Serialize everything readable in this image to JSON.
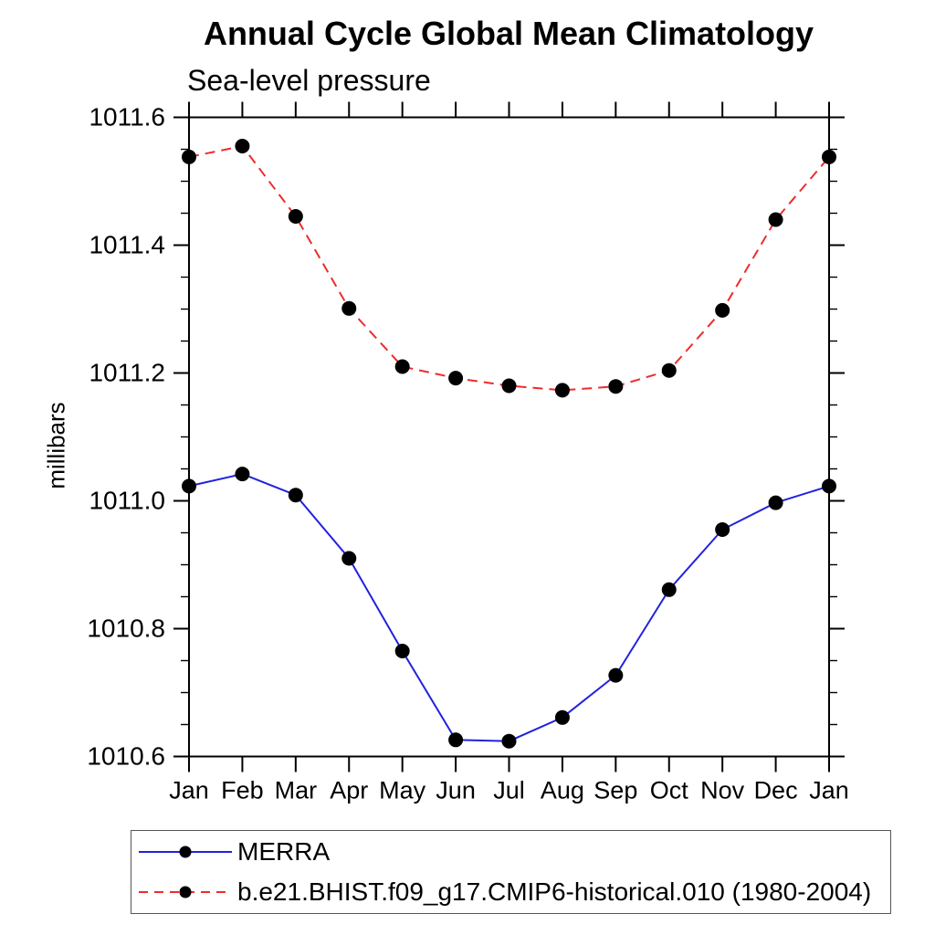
{
  "chart_data": {
    "type": "line",
    "title": "Annual Cycle Global Mean Climatology",
    "subtitle": "Sea-level pressure",
    "ylabel": "millibars",
    "xlabel": "",
    "categories": [
      "Jan",
      "Feb",
      "Mar",
      "Apr",
      "May",
      "Jun",
      "Jul",
      "Aug",
      "Sep",
      "Oct",
      "Nov",
      "Dec",
      "Jan"
    ],
    "ylim": [
      1010.6,
      1011.6
    ],
    "ytick_major_interval": 0.2,
    "ytick_minor_interval": 0.05,
    "ytick_labels": [
      "1010.6",
      "1010.8",
      "1011.0",
      "1011.2",
      "1011.4",
      "1011.6"
    ],
    "grid": false,
    "legend_position": "bottom",
    "axis_color": "#000000",
    "marker_shape": "filled-circle",
    "series": [
      {
        "name": "MERRA",
        "color": "#2222dd",
        "line_style": "solid",
        "marker_color": "#000000",
        "values": [
          1011.023,
          1011.042,
          1011.009,
          1010.91,
          1010.765,
          1010.626,
          1010.624,
          1010.661,
          1010.727,
          1010.861,
          1010.955,
          1010.997,
          1011.023
        ]
      },
      {
        "name": "b.e21.BHIST.f09_g17.CMIP6-historical.010 (1980-2004)",
        "color": "#ee2c2c",
        "line_style": "dashed",
        "marker_color": "#000000",
        "values": [
          1011.538,
          1011.555,
          1011.445,
          1011.301,
          1011.21,
          1011.192,
          1011.18,
          1011.173,
          1011.179,
          1011.204,
          1011.298,
          1011.44,
          1011.538
        ]
      }
    ]
  }
}
